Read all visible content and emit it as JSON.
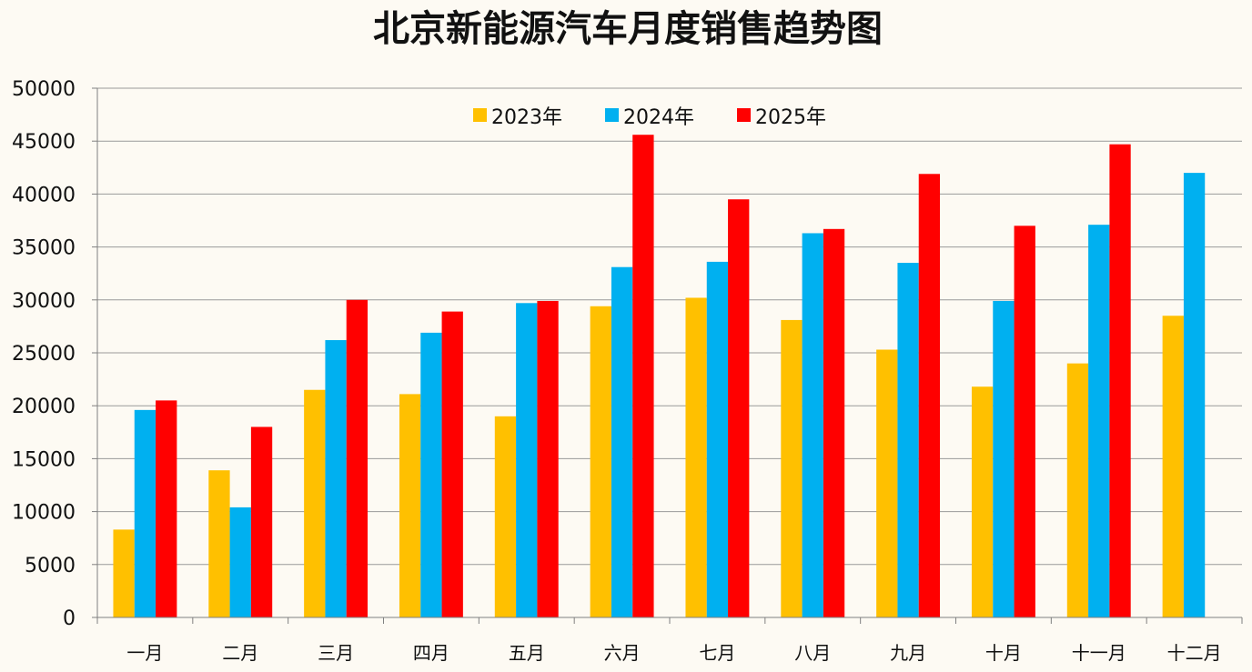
{
  "chart_data": {
    "type": "bar",
    "title": "北京新能源汽车月度销售趋势图",
    "xlabel": "",
    "ylabel": "",
    "ylim": [
      0,
      50000
    ],
    "ytick_step": 5000,
    "grid": true,
    "legend_position": "top-center",
    "categories": [
      "一月",
      "二月",
      "三月",
      "四月",
      "五月",
      "六月",
      "七月",
      "八月",
      "九月",
      "十月",
      "十一月",
      "十二月"
    ],
    "series": [
      {
        "name": "2023年",
        "color": "#ffc000",
        "values": [
          8300,
          13900,
          21500,
          21100,
          19000,
          29400,
          30200,
          28100,
          25300,
          21800,
          24000,
          28500
        ]
      },
      {
        "name": "2024年",
        "color": "#00b0f0",
        "values": [
          19600,
          10400,
          26200,
          26900,
          29700,
          33100,
          33600,
          36300,
          33500,
          29900,
          37100,
          42000
        ]
      },
      {
        "name": "2025年",
        "color": "#ff0000",
        "values": [
          20500,
          18000,
          30000,
          28900,
          29900,
          45600,
          39500,
          36700,
          41900,
          37000,
          44700,
          null
        ]
      }
    ]
  }
}
